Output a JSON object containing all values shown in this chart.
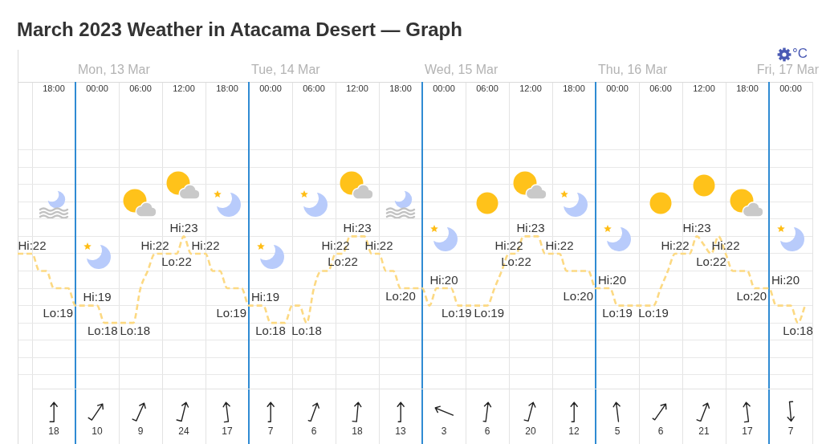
{
  "chart_data": [
    {
      "type": "line",
      "title": "March 2023 Weather in Atacama Desert — Graph",
      "ylabel": "°C",
      "color": "#fcd983",
      "line_style": "dashed",
      "marker": "none",
      "x": [
        "2023-03-12T16:00",
        "2023-03-12T17:00",
        "2023-03-12T18:00",
        "2023-03-12T19:00",
        "2023-03-12T20:00",
        "2023-03-12T21:00",
        "2023-03-12T22:00",
        "2023-03-12T23:00",
        "2023-03-13T00:00",
        "2023-03-13T01:00",
        "2023-03-13T02:00",
        "2023-03-13T03:00",
        "2023-03-13T04:00",
        "2023-03-13T05:00",
        "2023-03-13T06:00",
        "2023-03-13T07:00",
        "2023-03-13T08:00",
        "2023-03-13T09:00",
        "2023-03-13T10:00",
        "2023-03-13T11:00",
        "2023-03-13T12:00",
        "2023-03-13T13:00",
        "2023-03-13T14:00",
        "2023-03-13T15:00",
        "2023-03-13T16:00",
        "2023-03-13T17:00",
        "2023-03-13T18:00",
        "2023-03-13T19:00",
        "2023-03-13T20:00",
        "2023-03-13T21:00",
        "2023-03-13T22:00",
        "2023-03-13T23:00",
        "2023-03-14T00:00",
        "2023-03-14T01:00",
        "2023-03-14T02:00",
        "2023-03-14T03:00",
        "2023-03-14T04:00",
        "2023-03-14T05:00",
        "2023-03-14T06:00",
        "2023-03-14T07:00",
        "2023-03-14T08:00",
        "2023-03-14T09:00",
        "2023-03-14T10:00",
        "2023-03-14T11:00",
        "2023-03-14T12:00",
        "2023-03-14T13:00",
        "2023-03-14T14:00",
        "2023-03-14T15:00",
        "2023-03-14T16:00",
        "2023-03-14T17:00",
        "2023-03-14T18:00",
        "2023-03-14T19:00",
        "2023-03-14T20:00",
        "2023-03-14T21:00",
        "2023-03-14T22:00",
        "2023-03-14T23:00",
        "2023-03-15T00:00",
        "2023-03-15T01:00",
        "2023-03-15T02:00",
        "2023-03-15T03:00",
        "2023-03-15T04:00",
        "2023-03-15T05:00",
        "2023-03-15T06:00",
        "2023-03-15T07:00",
        "2023-03-15T08:00",
        "2023-03-15T09:00",
        "2023-03-15T10:00",
        "2023-03-15T11:00",
        "2023-03-15T12:00",
        "2023-03-15T13:00",
        "2023-03-15T14:00",
        "2023-03-15T15:00",
        "2023-03-15T16:00",
        "2023-03-15T17:00",
        "2023-03-15T18:00",
        "2023-03-15T19:00",
        "2023-03-15T20:00",
        "2023-03-15T21:00",
        "2023-03-15T22:00",
        "2023-03-15T23:00",
        "2023-03-16T00:00",
        "2023-03-16T01:00",
        "2023-03-16T02:00",
        "2023-03-16T03:00",
        "2023-03-16T04:00",
        "2023-03-16T05:00",
        "2023-03-16T06:00",
        "2023-03-16T07:00",
        "2023-03-16T08:00",
        "2023-03-16T09:00",
        "2023-03-16T10:00",
        "2023-03-16T11:00",
        "2023-03-16T12:00",
        "2023-03-16T13:00",
        "2023-03-16T14:00",
        "2023-03-16T15:00",
        "2023-03-16T16:00",
        "2023-03-16T17:00",
        "2023-03-16T18:00",
        "2023-03-16T19:00",
        "2023-03-16T20:00",
        "2023-03-16T21:00",
        "2023-03-16T22:00",
        "2023-03-16T23:00",
        "2023-03-17T00:00",
        "2023-03-17T01:00",
        "2023-03-17T02:00",
        "2023-03-17T03:00",
        "2023-03-17T04:00",
        "2023-03-17T05:00"
      ],
      "values": [
        22,
        22,
        22,
        21,
        21,
        20,
        20,
        20,
        19,
        19,
        19,
        19,
        18,
        18,
        18,
        18,
        18,
        20,
        21,
        22,
        22,
        22,
        22,
        23,
        22,
        22,
        22,
        21,
        21,
        20,
        20,
        20,
        19,
        19,
        19,
        18,
        18,
        18,
        19,
        19,
        18,
        20,
        21,
        21,
        22,
        22,
        23,
        23,
        23,
        22,
        22,
        21,
        21,
        20,
        20,
        20,
        20,
        19,
        20,
        20,
        20,
        19,
        19,
        19,
        19,
        19,
        20,
        21,
        22,
        22,
        23,
        23,
        23,
        22,
        22,
        22,
        21,
        21,
        21,
        21,
        20,
        20,
        20,
        19,
        19,
        19,
        19,
        19,
        19,
        20,
        21,
        22,
        22,
        22,
        23,
        22.5,
        22,
        23,
        22,
        21,
        21,
        21,
        20,
        20,
        20,
        19,
        19,
        19,
        18,
        19
      ],
      "value_labels": [
        null,
        null,
        "Hi:22",
        null,
        null,
        null,
        null,
        null,
        "Lo:19",
        null,
        null,
        "Hi:19",
        "Lo:18",
        null,
        null,
        null,
        "Lo:18",
        null,
        null,
        "Hi:22",
        null,
        null,
        "Lo:22",
        "Hi:23",
        null,
        null,
        "Hi:22",
        null,
        null,
        null,
        null,
        null,
        "Lo:19",
        null,
        "Hi:19",
        "Lo:18",
        null,
        null,
        null,
        null,
        "Lo:18",
        null,
        null,
        null,
        "Hi:22",
        "Lo:22",
        null,
        "Hi:23",
        null,
        null,
        "Hi:22",
        null,
        null,
        "Lo:20",
        null,
        null,
        null,
        null,
        null,
        "Hi:20",
        null,
        "Lo:19",
        null,
        null,
        null,
        "Lo:19",
        null,
        null,
        "Hi:22",
        "Lo:22",
        null,
        "Hi:23",
        null,
        null,
        null,
        "Hi:22",
        null,
        null,
        null,
        null,
        "Lo:20",
        null,
        "Hi:20",
        "Lo:19",
        null,
        null,
        null,
        null,
        "Lo:19",
        null,
        null,
        "Hi:22",
        null,
        null,
        "Hi:23",
        null,
        "Lo:22",
        null,
        "Hi:22",
        null,
        null,
        null,
        "Lo:20",
        null,
        "Hi:20",
        null,
        null,
        null,
        "Lo:18",
        null
      ],
      "xlim": [
        "2023-03-12T16:00",
        "2023-03-17T06:00"
      ],
      "xticks": [
        {
          "value": "2023-03-12T21:00",
          "label": "18:00"
        },
        {
          "value": "2023-03-13T03:00",
          "label": "00:00"
        },
        {
          "value": "2023-03-13T09:00",
          "label": "06:00"
        },
        {
          "value": "2023-03-13T15:00",
          "label": "12:00"
        },
        {
          "value": "2023-03-13T21:00",
          "label": "18:00"
        },
        {
          "value": "2023-03-14T03:00",
          "label": "00:00"
        },
        {
          "value": "2023-03-14T09:00",
          "label": "06:00"
        },
        {
          "value": "2023-03-14T15:00",
          "label": "12:00"
        },
        {
          "value": "2023-03-14T21:00",
          "label": "18:00"
        },
        {
          "value": "2023-03-15T03:00",
          "label": "00:00"
        },
        {
          "value": "2023-03-15T09:00",
          "label": "06:00"
        },
        {
          "value": "2023-03-15T15:00",
          "label": "12:00"
        },
        {
          "value": "2023-03-15T21:00",
          "label": "18:00"
        },
        {
          "value": "2023-03-16T03:00",
          "label": "00:00"
        },
        {
          "value": "2023-03-16T09:00",
          "label": "06:00"
        },
        {
          "value": "2023-03-16T15:00",
          "label": "12:00"
        },
        {
          "value": "2023-03-16T21:00",
          "label": "18:00"
        },
        {
          "value": "2023-03-17T03:00",
          "label": "00:00"
        }
      ],
      "ylim": [
        11,
        31
      ],
      "yticks": [
        {
          "value": 15,
          "label": null
        },
        {
          "value": 16,
          "label": null
        },
        {
          "value": 17,
          "label": null
        },
        {
          "value": 18,
          "label": null
        },
        {
          "value": 19,
          "label": null
        },
        {
          "value": 20,
          "label": null
        },
        {
          "value": 21,
          "label": null
        },
        {
          "value": 22,
          "label": null
        },
        {
          "value": 23,
          "label": null
        },
        {
          "value": 24,
          "label": null
        },
        {
          "value": 25,
          "label": null
        },
        {
          "value": 26,
          "label": null
        },
        {
          "value": 27,
          "label": null
        },
        {
          "value": 28,
          "label": null
        }
      ],
      "tick_labels": "x",
      "grid": true,
      "ref_lines": [
        {
          "axis": "x",
          "value": "2023-03-13T00:00",
          "label": "Mon, 13 Mar",
          "color": "#2f8bd3"
        },
        {
          "axis": "x",
          "value": "2023-03-14T00:00",
          "label": "Tue, 14 Mar",
          "color": "#2f8bd3"
        },
        {
          "axis": "x",
          "value": "2023-03-15T00:00",
          "label": "Wed, 15 Mar",
          "color": "#2f8bd3"
        },
        {
          "axis": "x",
          "value": "2023-03-16T00:00",
          "label": "Thu, 16 Mar",
          "color": "#2f8bd3"
        },
        {
          "axis": "x",
          "value": "2023-03-17T00:00",
          "label": "Fri, 17 Mar",
          "color": "#2f8bd3"
        }
      ]
    },
    {
      "type": "other",
      "categories": [
        null,
        null,
        null,
        null,
        null,
        null,
        null,
        null,
        null,
        null,
        null,
        null,
        null,
        null,
        null,
        null,
        null,
        null
      ],
      "values": [
        18,
        10,
        9,
        24,
        17,
        7,
        6,
        18,
        13,
        3,
        6,
        20,
        12,
        5,
        6,
        21,
        17,
        7
      ],
      "data_labels": true
    }
  ]
}
